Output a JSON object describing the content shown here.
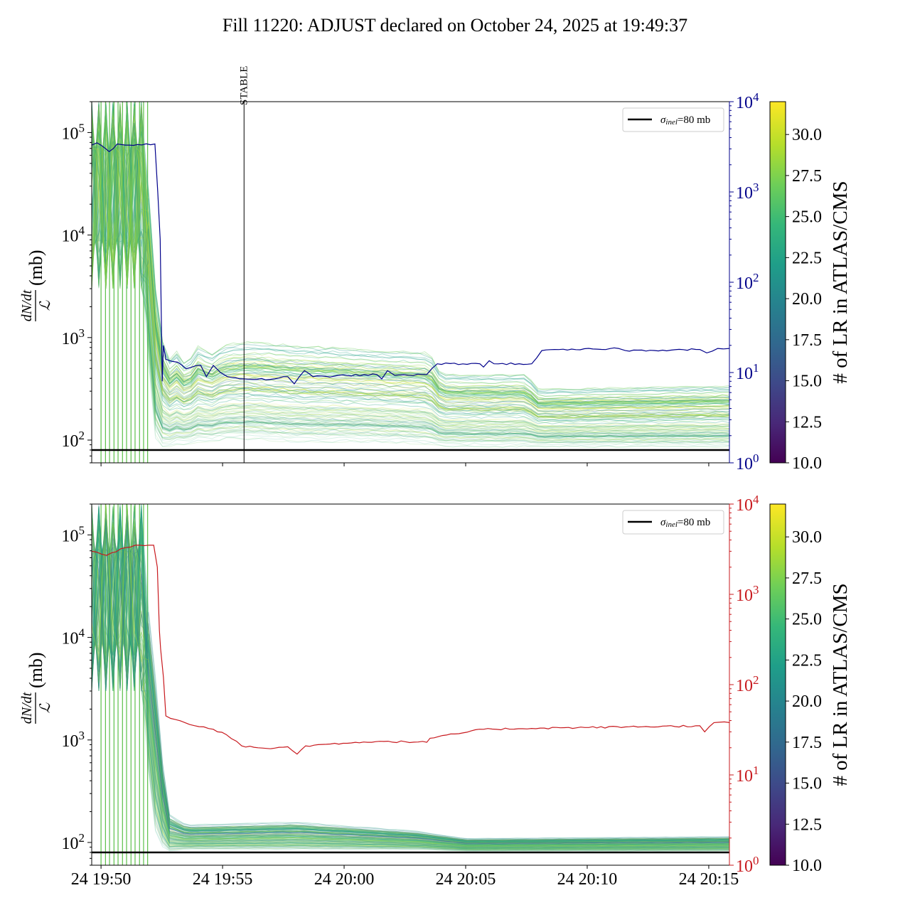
{
  "title": "Fill 11220: ADJUST declared on October 24, 2025 at 19:49:37",
  "colors": {
    "right_axis_top": "#00008b",
    "right_axis_bottom": "#c8191e",
    "reference_line": "#000000",
    "colormap": "viridis"
  },
  "chart_data": [
    {
      "type": "line",
      "panel": "top",
      "xlabel": "",
      "x_tick_labels": [
        "24 19:50",
        "24 19:55",
        "24 20:00",
        "24 20:05",
        "24 20:10",
        "24 20:15"
      ],
      "x_ticks": [
        "19:50:00",
        "19:55:00",
        "20:00:00",
        "20:05:00",
        "20:10:00",
        "20:15:00"
      ],
      "xlim": [
        "19:49:37",
        "20:15:51"
      ],
      "ylabel": {
        "numerator": "dN/dt",
        "denominator": "ℒ",
        "unit": "(mb)"
      },
      "yscale": "log",
      "ylim": [
        60,
        200000
      ],
      "y_ticks": [
        {
          "base": "10",
          "exp": "2",
          "value": 100
        },
        {
          "base": "10",
          "exp": "3",
          "value": 1000
        },
        {
          "base": "10",
          "exp": "4",
          "value": 10000
        },
        {
          "base": "10",
          "exp": "5",
          "value": 100000
        }
      ],
      "right_axis": {
        "yscale": "log",
        "ylim": [
          1,
          10000
        ],
        "color": "#00008b",
        "y_ticks": [
          {
            "base": "10",
            "exp": "0",
            "value": 1
          },
          {
            "base": "10",
            "exp": "1",
            "value": 10
          },
          {
            "base": "10",
            "exp": "2",
            "value": 100
          },
          {
            "base": "10",
            "exp": "3",
            "value": 1000
          },
          {
            "base": "10",
            "exp": "4",
            "value": 10000
          }
        ],
        "series": {
          "x": [
            "19:49:37",
            "19:49:50",
            "19:50:20",
            "19:50:40",
            "19:51:00",
            "19:51:30",
            "19:52:13",
            "19:52:20",
            "19:52:26",
            "19:52:31",
            "19:52:34",
            "19:52:40",
            "19:53:09",
            "19:53:30",
            "19:54:06",
            "19:54:20",
            "19:54:37",
            "19:54:55",
            "19:55:12",
            "19:55:53",
            "19:56:58",
            "19:57:41",
            "19:57:57",
            "19:58:22",
            "19:58:43",
            "20:01:21",
            "20:01:33",
            "20:01:47",
            "20:02:05",
            "20:03:24",
            "20:03:50",
            "20:05:35",
            "20:05:44",
            "20:05:58",
            "20:06:10",
            "20:07:43",
            "20:08:08",
            "20:11:17",
            "20:11:34",
            "20:14:38",
            "20:14:55",
            "20:15:22",
            "20:15:51"
          ],
          "y": [
            3300,
            3500,
            2800,
            3400,
            3300,
            3350,
            3400,
            1000,
            300,
            8,
            20,
            14,
            13,
            11,
            12,
            9,
            12,
            10,
            9,
            8.5,
            8.4,
            9,
            7.5,
            10.5,
            9,
            9.5,
            8.5,
            10.5,
            9.3,
            9.5,
            12.5,
            12.5,
            11.5,
            13.5,
            12.5,
            12.5,
            17.5,
            18.5,
            17.5,
            18,
            16.5,
            18.5,
            18.5
          ]
        }
      },
      "band_series": {
        "description_count": "many LR curves colored by # of LR",
        "x": [
          "19:49:37",
          "19:51:50",
          "19:52:00",
          "19:52:15",
          "19:52:25",
          "19:52:45",
          "19:53:10",
          "19:53:30",
          "19:54:00",
          "19:54:30",
          "19:55:00",
          "19:56:00",
          "19:58:00",
          "20:00:00",
          "20:01:00",
          "20:03:30",
          "20:04:00",
          "20:07:30",
          "20:08:00",
          "20:15:51"
        ],
        "lower": [
          3000,
          3000,
          300,
          100,
          82,
          85,
          90,
          90,
          95,
          95,
          100,
          100,
          95,
          95,
          95,
          90,
          85,
          85,
          85,
          85
        ],
        "upper": [
          200000,
          200000,
          20000,
          4000,
          1500,
          700,
          900,
          600,
          1000,
          800,
          1000,
          1100,
          1000,
          950,
          900,
          850,
          500,
          500,
          350,
          380
        ]
      },
      "saturated_times": [
        "19:50:00",
        "19:50:11",
        "19:50:21",
        "19:50:32",
        "19:50:42",
        "19:50:53",
        "19:51:03",
        "19:51:14",
        "19:51:24",
        "19:51:35",
        "19:51:45",
        "19:51:55"
      ],
      "reference_line": {
        "value": 80,
        "label_symbol": "σ",
        "label_sub": "inel",
        "label_rest": "=80 mb"
      },
      "vline": {
        "x": "19:55:53",
        "label": "STABLE"
      },
      "legend": "top-right",
      "colorbar": {
        "label": "# of LR in ATLAS/CMS",
        "range": [
          10,
          32
        ],
        "ticks": [
          "10.0",
          "12.5",
          "15.0",
          "17.5",
          "20.0",
          "22.5",
          "25.0",
          "27.5",
          "30.0"
        ]
      }
    },
    {
      "type": "line",
      "panel": "bottom",
      "x_tick_labels": [
        "24 19:50",
        "24 19:55",
        "24 20:00",
        "24 20:05",
        "24 20:10",
        "24 20:15"
      ],
      "x_ticks": [
        "19:50:00",
        "19:55:00",
        "20:00:00",
        "20:05:00",
        "20:10:00",
        "20:15:00"
      ],
      "xlim": [
        "19:49:37",
        "20:15:51"
      ],
      "ylabel": {
        "numerator": "dN/dt",
        "denominator": "ℒ",
        "unit": "(mb)"
      },
      "yscale": "log",
      "ylim": [
        60,
        200000
      ],
      "y_ticks": [
        {
          "base": "10",
          "exp": "2",
          "value": 100
        },
        {
          "base": "10",
          "exp": "3",
          "value": 1000
        },
        {
          "base": "10",
          "exp": "4",
          "value": 10000
        },
        {
          "base": "10",
          "exp": "5",
          "value": 100000
        }
      ],
      "right_axis": {
        "yscale": "log",
        "ylim": [
          1,
          10000
        ],
        "color": "#c8191e",
        "y_ticks": [
          {
            "base": "10",
            "exp": "0",
            "value": 1
          },
          {
            "base": "10",
            "exp": "1",
            "value": 10
          },
          {
            "base": "10",
            "exp": "2",
            "value": 100
          },
          {
            "base": "10",
            "exp": "3",
            "value": 1000
          },
          {
            "base": "10",
            "exp": "4",
            "value": 10000
          }
        ],
        "series": {
          "x": [
            "19:49:37",
            "19:50:14",
            "19:50:49",
            "19:51:24",
            "19:52:10",
            "19:52:19",
            "19:52:24",
            "19:52:27",
            "19:52:34",
            "19:52:40",
            "19:53:27",
            "19:54:37",
            "19:55:09",
            "19:55:47",
            "19:56:58",
            "19:57:41",
            "19:58:04",
            "19:58:25",
            "20:00:28",
            "20:01:38",
            "20:03:24",
            "20:03:32",
            "20:05:44",
            "20:08:04",
            "20:11:34",
            "20:14:38",
            "20:14:50",
            "20:15:13",
            "20:15:51"
          ],
          "y": [
            3000,
            2700,
            3200,
            3500,
            3500,
            2000,
            400,
            250,
            120,
            45,
            38,
            32,
            28,
            21,
            19.5,
            20.5,
            17,
            21,
            23,
            23.5,
            23,
            25.5,
            32,
            33,
            34,
            35,
            30,
            38,
            38
          ]
        }
      },
      "band_series": {
        "x": [
          "19:49:37",
          "19:51:50",
          "19:52:00",
          "19:52:20",
          "19:52:40",
          "19:53:30",
          "19:58:00",
          "20:03:00",
          "20:05:00",
          "20:15:51"
        ],
        "lower": [
          3000,
          3000,
          200,
          100,
          80,
          85,
          85,
          85,
          82,
          82
        ],
        "upper": [
          200000,
          200000,
          8000,
          3500,
          200,
          150,
          160,
          130,
          110,
          115
        ]
      },
      "saturated_times": [
        "19:50:00",
        "19:50:11",
        "19:50:21",
        "19:50:32",
        "19:50:42",
        "19:50:53",
        "19:51:03",
        "19:51:14",
        "19:51:24",
        "19:51:35",
        "19:51:45",
        "19:51:55"
      ],
      "reference_line": {
        "value": 80,
        "label_symbol": "σ",
        "label_sub": "inel",
        "label_rest": "=80 mb"
      },
      "legend": "top-right",
      "colorbar": {
        "label": "# of LR in ATLAS/CMS",
        "range": [
          10,
          32
        ],
        "ticks": [
          "10.0",
          "12.5",
          "15.0",
          "17.5",
          "20.0",
          "22.5",
          "25.0",
          "27.5",
          "30.0"
        ]
      }
    }
  ]
}
